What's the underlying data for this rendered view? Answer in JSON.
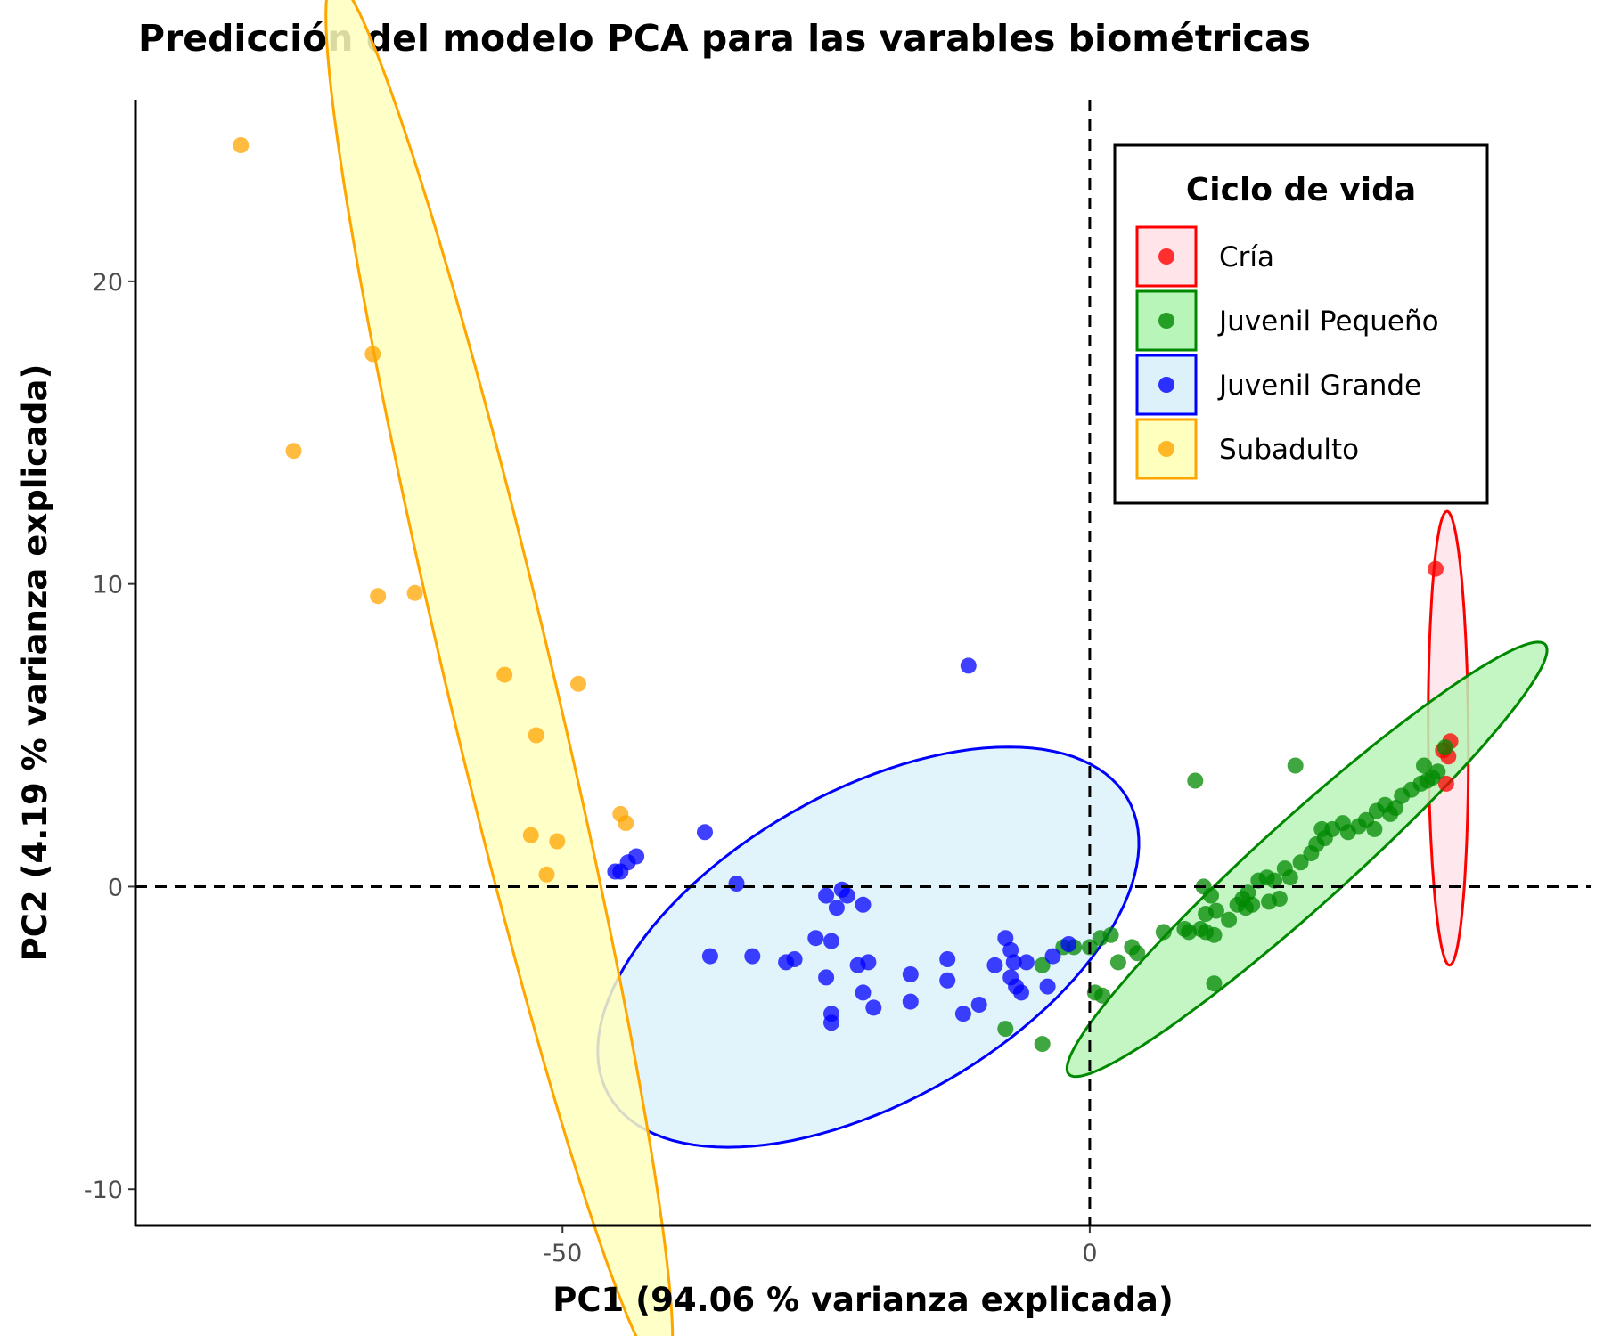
{
  "chart_data": {
    "type": "scatter",
    "title": "Predicción del modelo PCA para las varables biométricas",
    "xlabel": "PC1 (94.06 % varianza explicada)",
    "ylabel": "PC2 (4.19 % varianza explicada)",
    "xlim": [
      -90.5,
      47.5
    ],
    "ylim": [
      -11.2,
      26.0
    ],
    "xticks": [
      -50,
      0
    ],
    "yticks": [
      -10,
      0,
      10,
      20
    ],
    "reference_lines": {
      "x": 0,
      "y": 0,
      "style": "dashed"
    },
    "grid": false,
    "legend": {
      "title": "Ciclo de vida",
      "position": "top-right"
    },
    "series": [
      {
        "name": "Cría",
        "color": "#ff0000",
        "fill": "#ffe4ea",
        "ellipse": {
          "cx": 34.0,
          "cy": 4.9,
          "rx": 1.9,
          "ry": 7.5,
          "angle": 1.0
        },
        "points": [
          [
            32.8,
            10.5
          ],
          [
            34.2,
            4.8
          ],
          [
            33.5,
            4.5
          ],
          [
            34.0,
            4.3
          ],
          [
            33.8,
            3.4
          ]
        ]
      },
      {
        "name": "Juvenil Pequeño",
        "color": "#008800",
        "fill": "#b8f5b8",
        "ellipse": {
          "cx": 20.6,
          "cy": 0.9,
          "rx": 23.8,
          "ry": 1.85,
          "angle": 17.0
        },
        "points": [
          [
            -4.5,
            -2.6
          ],
          [
            -2.5,
            -2.0
          ],
          [
            -1.5,
            -2.0
          ],
          [
            0.0,
            -2.0
          ],
          [
            1.0,
            -1.7
          ],
          [
            2.0,
            -1.6
          ],
          [
            2.7,
            -2.5
          ],
          [
            0.5,
            -3.5
          ],
          [
            1.2,
            -3.6
          ],
          [
            -8.0,
            -4.7
          ],
          [
            -4.5,
            -5.2
          ],
          [
            4.0,
            -2.0
          ],
          [
            4.5,
            -2.2
          ],
          [
            7.0,
            -1.5
          ],
          [
            9.0,
            -1.4
          ],
          [
            9.4,
            -1.5
          ],
          [
            10.5,
            -1.4
          ],
          [
            11.0,
            -1.5
          ],
          [
            11.8,
            -1.6
          ],
          [
            11.0,
            -0.9
          ],
          [
            12.0,
            -0.8
          ],
          [
            11.5,
            -0.3
          ],
          [
            10.8,
            0.0
          ],
          [
            13.2,
            -1.1
          ],
          [
            14.0,
            -0.6
          ],
          [
            14.8,
            -0.7
          ],
          [
            14.5,
            -0.4
          ],
          [
            15.4,
            -0.6
          ],
          [
            15.0,
            -0.2
          ],
          [
            16.0,
            0.2
          ],
          [
            16.8,
            0.3
          ],
          [
            17.5,
            0.2
          ],
          [
            18.5,
            0.6
          ],
          [
            19.0,
            0.3
          ],
          [
            18.0,
            -0.4
          ],
          [
            17.0,
            -0.5
          ],
          [
            20.0,
            0.8
          ],
          [
            21.0,
            1.1
          ],
          [
            21.5,
            1.4
          ],
          [
            22.3,
            1.6
          ],
          [
            22.0,
            1.9
          ],
          [
            23.0,
            1.9
          ],
          [
            24.0,
            2.1
          ],
          [
            24.5,
            1.8
          ],
          [
            25.5,
            2.0
          ],
          [
            26.2,
            2.2
          ],
          [
            27.2,
            2.5
          ],
          [
            28.0,
            2.7
          ],
          [
            27.0,
            1.9
          ],
          [
            28.5,
            2.4
          ],
          [
            29.0,
            2.6
          ],
          [
            29.6,
            3.0
          ],
          [
            30.5,
            3.2
          ],
          [
            31.4,
            3.4
          ],
          [
            32.5,
            3.6
          ],
          [
            33.0,
            3.8
          ],
          [
            32.0,
            3.5
          ],
          [
            33.7,
            4.6
          ],
          [
            19.5,
            4.0
          ],
          [
            10.0,
            3.5
          ],
          [
            11.8,
            -3.2
          ],
          [
            31.7,
            4.0
          ]
        ]
      },
      {
        "name": "Juvenil Grande",
        "color": "#0000ff",
        "fill": "#dcf1fa",
        "ellipse": {
          "cx": -21.0,
          "cy": -2.0,
          "rx": 25.9,
          "ry": 5.6,
          "angle": 8.0
        },
        "points": [
          [
            -36.5,
            1.8
          ],
          [
            -43.0,
            1.0
          ],
          [
            -43.8,
            0.8
          ],
          [
            -44.5,
            0.5
          ],
          [
            -45.0,
            0.5
          ],
          [
            -33.5,
            0.1
          ],
          [
            -25.0,
            -0.3
          ],
          [
            -23.5,
            -0.1
          ],
          [
            -24.0,
            -0.7
          ],
          [
            -23.0,
            -0.3
          ],
          [
            -21.5,
            -0.6
          ],
          [
            -26.0,
            -1.7
          ],
          [
            -24.5,
            -1.8
          ],
          [
            -21.0,
            -2.5
          ],
          [
            -22.0,
            -2.6
          ],
          [
            -28.0,
            -2.4
          ],
          [
            -28.8,
            -2.5
          ],
          [
            -25.0,
            -3.0
          ],
          [
            -21.5,
            -3.5
          ],
          [
            -24.5,
            -4.2
          ],
          [
            -24.5,
            -4.5
          ],
          [
            -20.5,
            -4.0
          ],
          [
            -17.0,
            -2.9
          ],
          [
            -17.0,
            -3.8
          ],
          [
            -13.5,
            -2.4
          ],
          [
            -13.5,
            -3.1
          ],
          [
            -12.0,
            -4.2
          ],
          [
            -10.5,
            -3.9
          ],
          [
            -9.0,
            -2.6
          ],
          [
            -8.0,
            -1.7
          ],
          [
            -7.5,
            -2.1
          ],
          [
            -7.2,
            -2.5
          ],
          [
            -7.5,
            -3.0
          ],
          [
            -7.0,
            -3.3
          ],
          [
            -6.5,
            -3.5
          ],
          [
            -6.0,
            -2.5
          ],
          [
            -4.0,
            -3.3
          ],
          [
            -3.5,
            -2.3
          ],
          [
            -2.0,
            -1.9
          ],
          [
            -11.5,
            7.3
          ],
          [
            -36.0,
            -2.3
          ],
          [
            -32.0,
            -2.3
          ]
        ]
      },
      {
        "name": "Subadulto",
        "color": "#ffa500",
        "fill": "#ffffbe",
        "ellipse": {
          "cx": -56.0,
          "cy": 6.9,
          "rx": 28.0,
          "ry": 4.3,
          "angle": -55.0
        },
        "points": [
          [
            -80.5,
            24.5
          ],
          [
            -68.0,
            17.6
          ],
          [
            -75.5,
            14.4
          ],
          [
            -67.5,
            9.6
          ],
          [
            -64.0,
            9.7
          ],
          [
            -55.5,
            7.0
          ],
          [
            -48.5,
            6.7
          ],
          [
            -52.5,
            5.0
          ],
          [
            -44.5,
            2.4
          ],
          [
            -44.0,
            2.1
          ],
          [
            -53.0,
            1.7
          ],
          [
            -50.5,
            1.5
          ],
          [
            -51.5,
            0.4
          ]
        ]
      }
    ]
  }
}
